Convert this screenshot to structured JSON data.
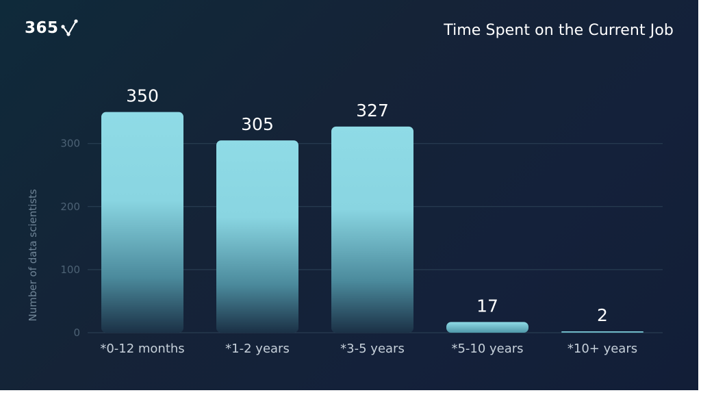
{
  "logo": {
    "text": "365"
  },
  "chart_data": {
    "type": "bar",
    "title": "Time Spent on the Current Job",
    "ylabel": "Number of data scientists",
    "xlabel": "",
    "categories": [
      "*0-12 months",
      "*1-2 years",
      "*3-5 years",
      "*5-10 years",
      "*10+ years"
    ],
    "values": [
      350,
      305,
      327,
      17,
      2
    ],
    "yticks": [
      0,
      100,
      200,
      300
    ],
    "ylim": [
      0,
      350
    ],
    "grid": true,
    "bar_color": "#8fdbe6"
  },
  "colors": {
    "background": "#152337",
    "bar": "#8fdbe6",
    "text": "#ffffff"
  }
}
